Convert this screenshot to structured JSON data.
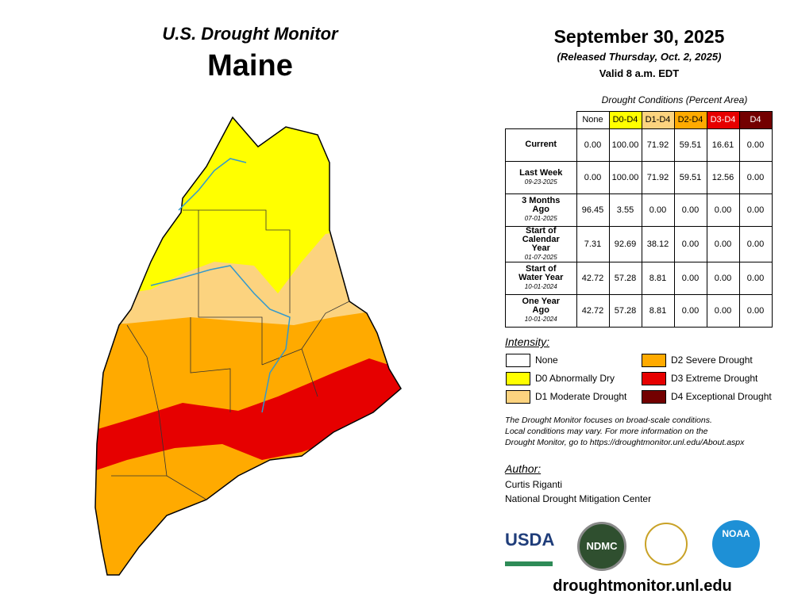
{
  "header": {
    "title": "U.S. Drought Monitor",
    "state": "Maine",
    "date": "September 30, 2025",
    "released": "(Released Thursday, Oct. 2, 2025)",
    "valid": "Valid 8 a.m. EDT"
  },
  "table": {
    "caption": "Drought Conditions (Percent Area)",
    "columns": [
      {
        "label": "None",
        "color": "#ffffff",
        "text": "#000000"
      },
      {
        "label": "D0-D4",
        "color": "#ffff00",
        "text": "#000000"
      },
      {
        "label": "D1-D4",
        "color": "#fcd37f",
        "text": "#000000"
      },
      {
        "label": "D2-D4",
        "color": "#ffaa00",
        "text": "#000000"
      },
      {
        "label": "D3-D4",
        "color": "#e60000",
        "text": "#ffffff"
      },
      {
        "label": "D4",
        "color": "#730000",
        "text": "#ffffff"
      }
    ],
    "rows": [
      {
        "label": "Current",
        "values": [
          "0.00",
          "100.00",
          "71.92",
          "59.51",
          "16.61",
          "0.00"
        ]
      },
      {
        "label": "Last Week",
        "date": "09-23-2025",
        "values": [
          "0.00",
          "100.00",
          "71.92",
          "59.51",
          "12.56",
          "0.00"
        ]
      },
      {
        "label": "3 Months Ago",
        "date": "07-01-2025",
        "values": [
          "96.45",
          "3.55",
          "0.00",
          "0.00",
          "0.00",
          "0.00"
        ]
      },
      {
        "label": "Start of Calendar Year",
        "date": "01-07-2025",
        "values": [
          "7.31",
          "92.69",
          "38.12",
          "0.00",
          "0.00",
          "0.00"
        ]
      },
      {
        "label": "Start of Water Year",
        "date": "10-01-2024",
        "values": [
          "42.72",
          "57.28",
          "8.81",
          "0.00",
          "0.00",
          "0.00"
        ]
      },
      {
        "label": "One Year Ago",
        "date": "10-01-2024",
        "values": [
          "42.72",
          "57.28",
          "8.81",
          "0.00",
          "0.00",
          "0.00"
        ]
      }
    ]
  },
  "legend": {
    "title": "Intensity:",
    "items": [
      {
        "label": "None",
        "color": "#ffffff"
      },
      {
        "label": "D0 Abnormally Dry",
        "color": "#ffff00"
      },
      {
        "label": "D1 Moderate Drought",
        "color": "#fcd37f"
      },
      {
        "label": "D2 Severe Drought",
        "color": "#ffaa00"
      },
      {
        "label": "D3 Extreme Drought",
        "color": "#e60000"
      },
      {
        "label": "D4 Exceptional Drought",
        "color": "#730000"
      }
    ]
  },
  "note": [
    "The Drought Monitor focuses on broad-scale conditions.",
    "Local conditions may vary. For more information on the",
    "Drought Monitor, go to https://droughtmonitor.unl.edu/About.aspx"
  ],
  "author": {
    "heading": "Author:",
    "name": "Curtis Riganti",
    "org": "National Drought Mitigation Center"
  },
  "logos": [
    "USDA",
    "NDMC",
    "NOAA"
  ],
  "footer": "droughtmonitor.unl.edu"
}
